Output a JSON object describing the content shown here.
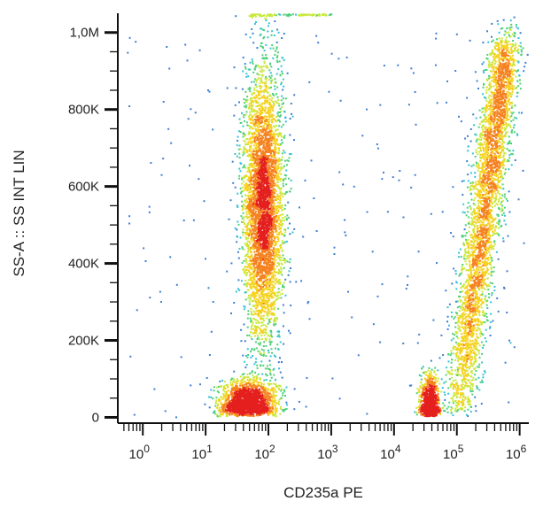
{
  "chart_data": {
    "type": "scatter",
    "subtype": "flow-cytometry-density-dot-plot",
    "title": "",
    "xlabel": "CD235a PE",
    "ylabel": "SS-A :: SS INT LIN",
    "x_scale": "log",
    "y_scale": "linear",
    "xlim": [
      0.4,
      1400000
    ],
    "ylim": [
      -15000,
      1050000
    ],
    "x_ticks": [
      {
        "value": 1,
        "base": "10",
        "exp": "0"
      },
      {
        "value": 10,
        "base": "10",
        "exp": "1"
      },
      {
        "value": 100,
        "base": "10",
        "exp": "2"
      },
      {
        "value": 1000,
        "base": "10",
        "exp": "3"
      },
      {
        "value": 10000,
        "base": "10",
        "exp": "4"
      },
      {
        "value": 100000,
        "base": "10",
        "exp": "5"
      },
      {
        "value": 1000000,
        "base": "10",
        "exp": "6"
      }
    ],
    "y_ticks": [
      {
        "value": 0,
        "label": "0"
      },
      {
        "value": 200000,
        "label": "200K"
      },
      {
        "value": 400000,
        "label": "400K"
      },
      {
        "value": 600000,
        "label": "600K"
      },
      {
        "value": 800000,
        "label": "800K"
      },
      {
        "value": 1000000,
        "label": "1,0M"
      }
    ],
    "grid": false,
    "legend": "none",
    "colormap": [
      "#2b3f9e",
      "#3d7fd1",
      "#36c2d9",
      "#4fd07a",
      "#c8e83a",
      "#f5d21e",
      "#f58220",
      "#e4201e"
    ],
    "populations": [
      {
        "label": "CD235a-negative elongated cluster",
        "x_center": 80,
        "x_spread": 0.16,
        "y_center": 550000,
        "y_spread": 180000,
        "count": 4200
      },
      {
        "label": "CD235a-negative low-SS cluster",
        "x_center": 45,
        "x_spread": 0.22,
        "y_center": 40000,
        "y_spread": 30000,
        "count": 1800
      },
      {
        "label": "CD235a-positive low-SS cluster",
        "x_center": 36000,
        "x_spread": 0.07,
        "y_center": 30000,
        "y_spread": 40000,
        "count": 1100
      },
      {
        "label": "CD235a-positive rising cluster",
        "x_center": 200000,
        "x_spread": 0.3,
        "y_center": 300000,
        "y_spread": 230000,
        "count": 3600
      }
    ]
  }
}
